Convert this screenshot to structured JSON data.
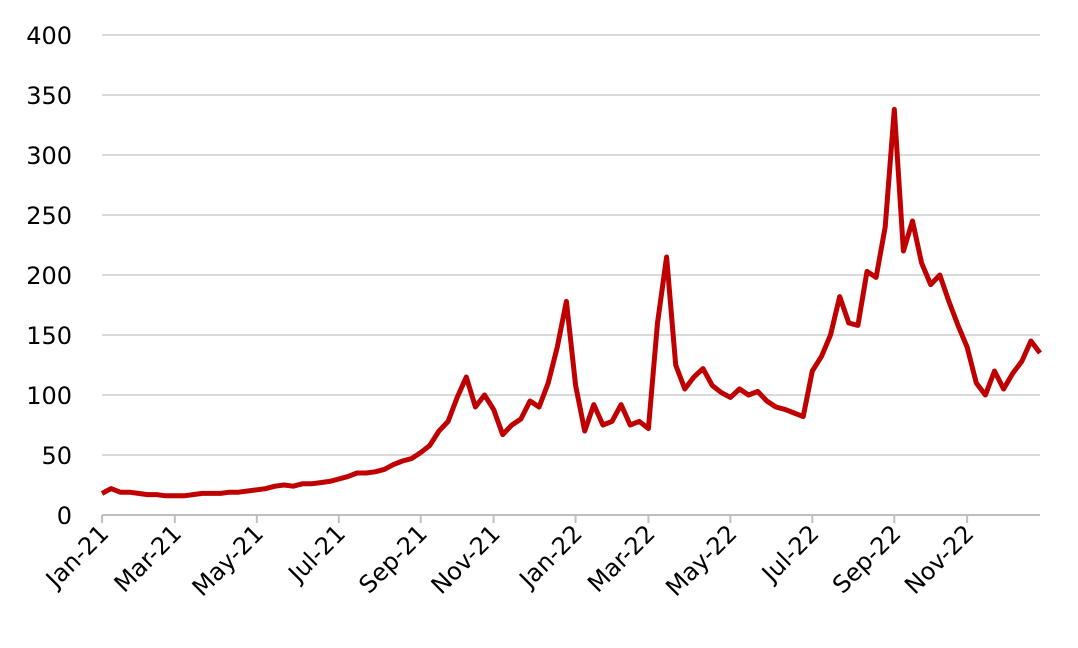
{
  "chart_data": {
    "type": "line",
    "categories": [
      "Jan-21",
      null,
      null,
      null,
      null,
      null,
      null,
      null,
      "Mar-21",
      null,
      null,
      null,
      null,
      null,
      null,
      null,
      null,
      "May-21",
      null,
      null,
      null,
      null,
      null,
      null,
      null,
      null,
      "Jul-21",
      null,
      null,
      null,
      null,
      null,
      null,
      null,
      null,
      "Sep-21",
      null,
      null,
      null,
      null,
      null,
      null,
      null,
      "Nov-21",
      null,
      null,
      null,
      null,
      null,
      null,
      null,
      null,
      "Jan-22",
      null,
      null,
      null,
      null,
      null,
      null,
      null,
      "Mar-22",
      null,
      null,
      null,
      null,
      null,
      null,
      null,
      null,
      "May-22",
      null,
      null,
      null,
      null,
      null,
      null,
      null,
      null,
      "Jul-22",
      null,
      null,
      null,
      null,
      null,
      null,
      null,
      null,
      "Sep-22",
      null,
      null,
      null,
      null,
      null,
      null,
      null,
      "Nov-22",
      null,
      null,
      null,
      null,
      null,
      null,
      null,
      null
    ],
    "series": [
      {
        "color": "#c00000",
        "values": [
          18,
          22,
          19,
          19,
          18,
          17,
          17,
          16,
          16,
          16,
          17,
          18,
          18,
          18,
          19,
          19,
          20,
          21,
          22,
          24,
          25,
          24,
          26,
          26,
          27,
          28,
          30,
          32,
          35,
          35,
          36,
          38,
          42,
          45,
          47,
          52,
          58,
          70,
          78,
          98,
          115,
          90,
          100,
          88,
          67,
          75,
          80,
          95,
          90,
          110,
          140,
          178,
          108,
          70,
          92,
          75,
          78,
          92,
          75,
          78,
          72,
          160,
          215,
          125,
          105,
          115,
          122,
          108,
          102,
          98,
          105,
          100,
          103,
          95,
          90,
          88,
          85,
          82,
          120,
          132,
          150,
          182,
          160,
          158,
          203,
          198,
          240,
          338,
          220,
          245,
          210,
          192,
          200,
          178,
          158,
          140,
          110,
          100,
          120,
          105,
          118,
          128,
          145,
          135
        ]
      }
    ],
    "ylim": [
      0,
      400
    ],
    "yticks": [
      0,
      50,
      100,
      150,
      200,
      250,
      300,
      350,
      400
    ],
    "grid": true
  }
}
